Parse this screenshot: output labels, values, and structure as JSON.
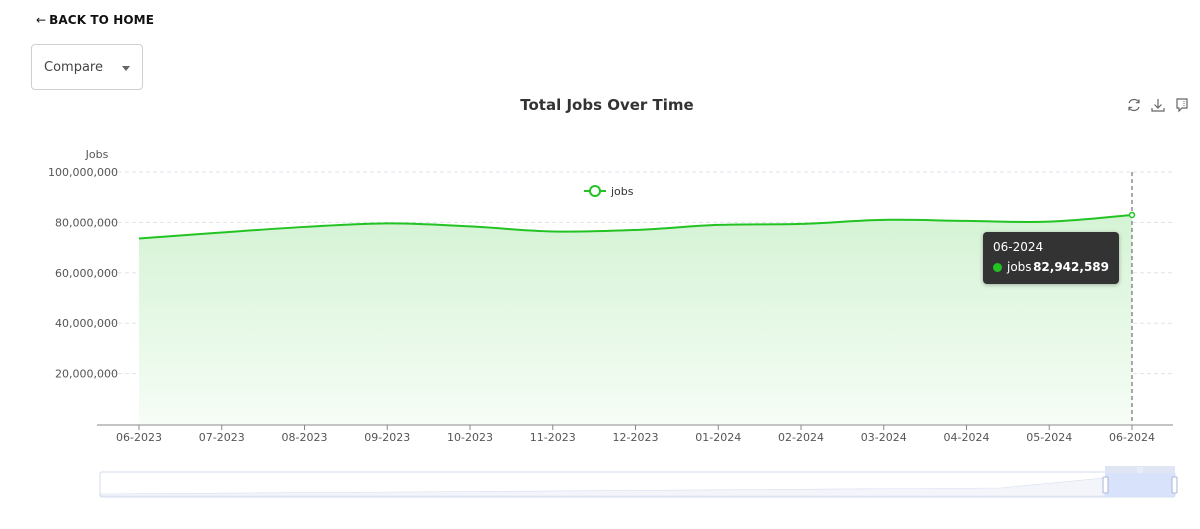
{
  "nav": {
    "back_label": "BACK TO HOME",
    "back_arrow": "←"
  },
  "compare": {
    "label": "Compare"
  },
  "toolbox": {
    "icons": [
      "refresh-icon",
      "download-icon",
      "data-view-icon"
    ]
  },
  "colors": {
    "series": "#22c322",
    "area_top": "#d8f5d8",
    "tooltip_bg": "#333333",
    "slider_fill": "#d4e0fb"
  },
  "chart_data": {
    "type": "area",
    "title": "Total Jobs Over Time",
    "xlabel": "",
    "ylabel": "Jobs",
    "categories": [
      "06-2023",
      "07-2023",
      "08-2023",
      "09-2023",
      "10-2023",
      "11-2023",
      "12-2023",
      "01-2024",
      "02-2024",
      "03-2024",
      "04-2024",
      "05-2024",
      "06-2024"
    ],
    "series": [
      {
        "name": "jobs",
        "values": [
          73600000,
          76000000,
          78200000,
          79600000,
          78400000,
          76400000,
          77000000,
          79000000,
          79400000,
          81000000,
          80600000,
          80300000,
          82942589
        ]
      }
    ],
    "ylim": [
      0,
      100000000
    ],
    "yticks": [
      "20,000,000",
      "40,000,000",
      "60,000,000",
      "80,000,000",
      "100,000,000"
    ],
    "grid": true,
    "legend_position": "top-center",
    "tooltip": {
      "date": "06-2024",
      "series": "jobs",
      "value": "82,942,589"
    }
  }
}
